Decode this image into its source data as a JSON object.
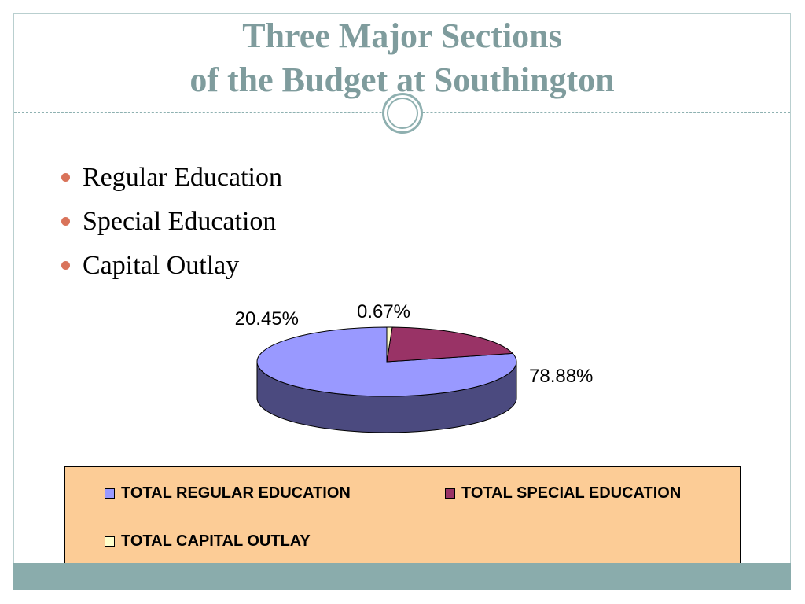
{
  "slide": {
    "title_line1": "Three Major Sections",
    "title_line2": "of the Budget at Southington",
    "bullets": [
      "Regular Education",
      "Special Education",
      "Capital Outlay"
    ],
    "colors": {
      "title": "#7f9c9d",
      "bullet_dot": "#d9735a",
      "accent_bar": "#8aacac",
      "legend_background": "#fccc96"
    }
  },
  "chart_data": {
    "type": "pie",
    "style": "3d",
    "title": "",
    "categories": [
      "TOTAL REGULAR EDUCATION",
      "TOTAL SPECIAL EDUCATION",
      "TOTAL CAPITAL OUTLAY"
    ],
    "values": [
      78.88,
      20.45,
      0.67
    ],
    "labels": [
      "78.88%",
      "20.45%",
      "0.67%"
    ],
    "colors": [
      "#9999ff",
      "#993366",
      "#ffffcc"
    ],
    "side_colors": [
      "#4b4a7f",
      "#4c1932",
      "#7f7f66"
    ],
    "legend_position": "bottom"
  }
}
